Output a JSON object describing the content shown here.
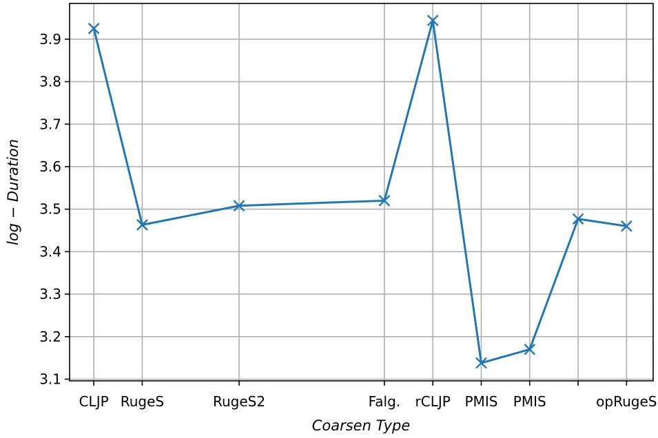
{
  "chart_data": {
    "type": "line",
    "title": "",
    "xlabel": "Coarsen Type",
    "ylabel": "log − Duration",
    "x": [
      0,
      1,
      3,
      6,
      7,
      8,
      9,
      10,
      11
    ],
    "xtick_positions": [
      0,
      1,
      3,
      6,
      7,
      8,
      9,
      10,
      11
    ],
    "xtick_labels": [
      "CLJP",
      "RugeS",
      "RugeS2",
      "Falg.",
      "rCLJP",
      "PMIS",
      "PMIS",
      "",
      "opRugeS"
    ],
    "xlim": [
      -0.5,
      11.55
    ],
    "ylim": [
      3.096,
      3.984
    ],
    "yticks": [
      3.1,
      3.2,
      3.3,
      3.4,
      3.5,
      3.6,
      3.7,
      3.8,
      3.9
    ],
    "grid": true,
    "marker": "x",
    "color": "#1f77b4",
    "series": [
      {
        "values": [
          3.925,
          3.463,
          3.508,
          3.52,
          3.944,
          3.138,
          3.17,
          3.477,
          3.46
        ]
      }
    ]
  }
}
